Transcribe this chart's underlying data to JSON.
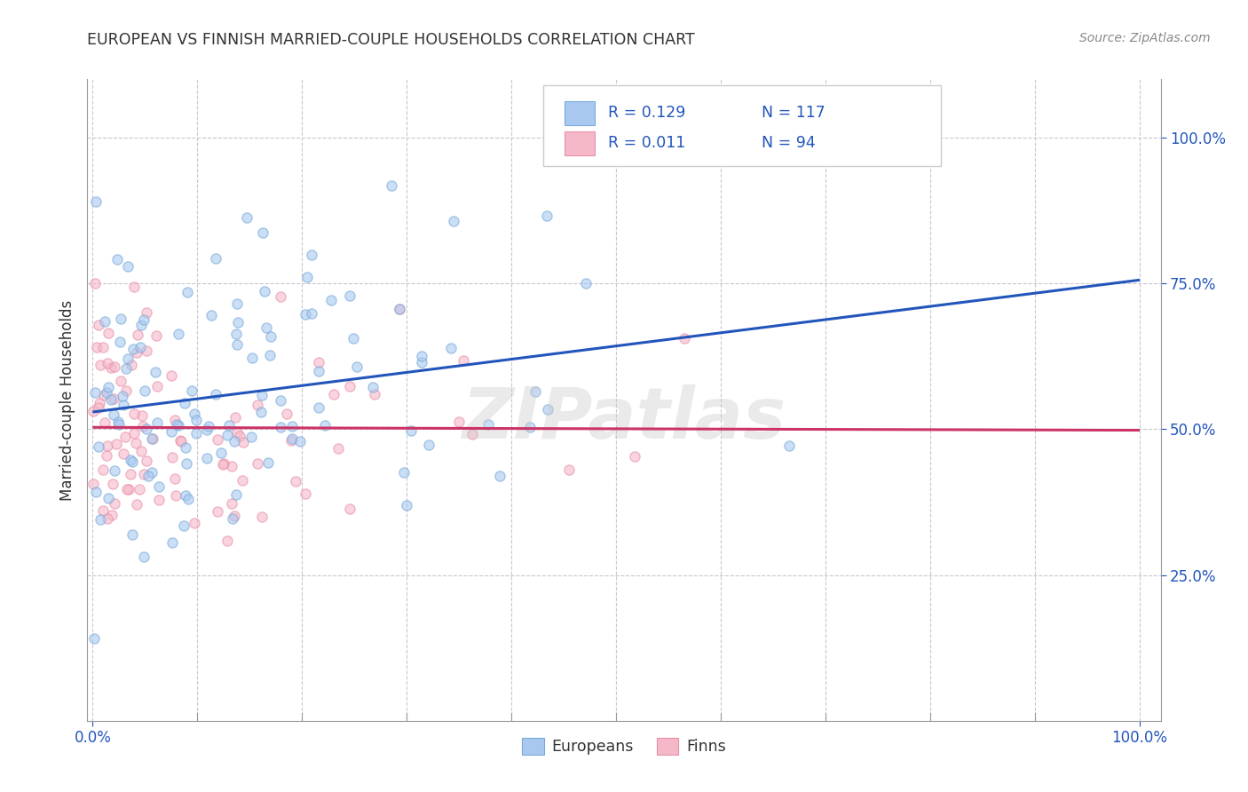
{
  "title": "EUROPEAN VS FINNISH MARRIED-COUPLE HOUSEHOLDS CORRELATION CHART",
  "source": "Source: ZipAtlas.com",
  "ylabel": "Married-couple Households",
  "watermark": "ZIPatlas",
  "legend_r_european": "R = 0.129",
  "legend_n_european": "N = 117",
  "legend_r_finnish": "R = 0.011",
  "legend_n_finnish": "N = 94",
  "legend_label_european": "Europeans",
  "legend_label_finnish": "Finns",
  "european_scatter_color": "#A8C8F0",
  "finnish_scatter_color": "#F5B8C8",
  "european_scatter_edge": "#7AAAD8",
  "finnish_scatter_edge": "#E890A8",
  "european_line_color": "#2255BB",
  "finnish_line_color": "#CC3366",
  "r_n_text_color": "#2255BB",
  "background_color": "#FFFFFF",
  "grid_color": "#C8C8D0",
  "title_color": "#333333",
  "ytick_color": "#2255BB",
  "xtick_color": "#2255BB",
  "ytick_labels": [
    "25.0%",
    "50.0%",
    "75.0%",
    "100.0%"
  ],
  "ytick_values": [
    0.25,
    0.5,
    0.75,
    1.0
  ],
  "xtick_minor_values": [
    0.0,
    0.1,
    0.2,
    0.3,
    0.4,
    0.5,
    0.6,
    0.7,
    0.8,
    0.9,
    1.0
  ],
  "marker_size": 65,
  "marker_alpha": 0.6,
  "marker_lw": 1.0,
  "line_width": 2.2,
  "euro_n": 117,
  "finn_n": 94
}
